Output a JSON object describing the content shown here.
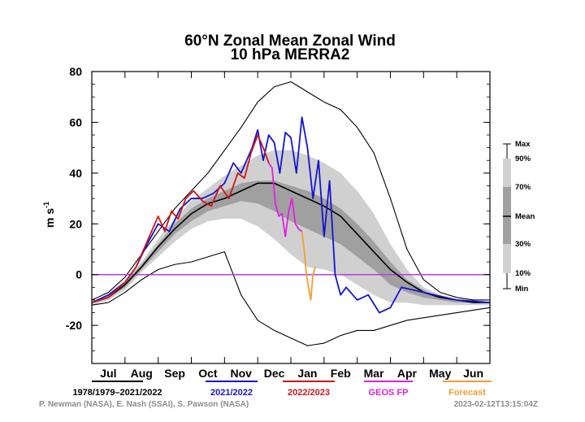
{
  "chart_data": {
    "type": "area",
    "title": "60°N Zonal Mean Zonal Wind",
    "subtitle": "10 hPa   MERRA2",
    "ylabel": "m s-1",
    "ylim": [
      -35,
      80
    ],
    "yticks": [
      80,
      60,
      40,
      20,
      0,
      -20
    ],
    "months": [
      "Jul",
      "Aug",
      "Sep",
      "Oct",
      "Nov",
      "Dec",
      "Jan",
      "Feb",
      "Mar",
      "Apr",
      "May",
      "Jun"
    ],
    "zero_line": 0,
    "x_days": [
      0,
      15,
      30,
      45,
      60,
      75,
      90,
      105,
      120,
      135,
      150,
      165,
      180,
      195,
      210,
      225,
      240,
      255,
      270,
      285,
      300,
      315,
      330,
      345,
      360
    ],
    "climatology": {
      "max": [
        -10,
        -7,
        -1,
        8,
        17,
        26,
        33,
        40,
        49,
        58,
        68,
        74,
        76,
        72,
        68,
        65,
        58,
        48,
        30,
        10,
        -2,
        -7,
        -9,
        -10,
        -10
      ],
      "p90": [
        -11,
        -8,
        -3,
        5,
        14,
        22,
        29,
        34,
        39,
        43,
        47,
        49,
        49,
        47,
        44,
        40,
        33,
        24,
        12,
        2,
        -5,
        -8,
        -10,
        -11,
        -11
      ],
      "p70": [
        -11,
        -8,
        -3,
        4,
        12,
        20,
        26,
        30,
        33,
        36,
        37,
        37,
        35,
        33,
        30,
        26,
        20,
        13,
        5,
        -2,
        -6,
        -9,
        -10,
        -11,
        -11
      ],
      "mean": [
        -11,
        -9,
        -4,
        3,
        11,
        18,
        24,
        28,
        30,
        33,
        36,
        36,
        33,
        30,
        27,
        23,
        16,
        9,
        2,
        -3,
        -7,
        -9,
        -10,
        -11,
        -11
      ],
      "p30": [
        -11,
        -9,
        -5,
        2,
        9,
        16,
        21,
        25,
        27,
        29,
        28,
        25,
        21,
        18,
        15,
        12,
        7,
        2,
        -4,
        -7,
        -9,
        -10,
        -11,
        -11,
        -11
      ],
      "p10": [
        -12,
        -10,
        -6,
        1,
        7,
        13,
        18,
        21,
        22,
        22,
        19,
        14,
        8,
        3,
        2,
        0,
        -4,
        -8,
        -11,
        -11,
        -12,
        -12,
        -12,
        -12,
        -12
      ],
      "min": [
        -12,
        -11,
        -7,
        -2,
        2,
        4,
        5,
        7,
        9,
        -8,
        -18,
        -22,
        -25,
        -28,
        -27,
        -24,
        -22,
        -22,
        -20,
        -18,
        -17,
        -16,
        -15,
        -14,
        -13
      ]
    },
    "series": [
      {
        "name": "2021/2022",
        "color": "#1414d2",
        "x": [
          0,
          15,
          30,
          40,
          50,
          60,
          70,
          80,
          90,
          100,
          110,
          120,
          128,
          135,
          140,
          145,
          150,
          155,
          160,
          165,
          170,
          175,
          180,
          185,
          190,
          195,
          200,
          205,
          210,
          215,
          220,
          225,
          230,
          240,
          250,
          260,
          270,
          280,
          300,
          330,
          360
        ],
        "y": [
          -11,
          -8,
          -3,
          3,
          12,
          20,
          17,
          26,
          30,
          30,
          32,
          36,
          44,
          40,
          45,
          50,
          57,
          45,
          55,
          52,
          40,
          56,
          54,
          40,
          62,
          50,
          30,
          45,
          15,
          37,
          0,
          -8,
          -5,
          -10,
          -8,
          -15,
          -13,
          -5,
          -7,
          -10,
          -11
        ]
      },
      {
        "name": "2022/2023",
        "color": "#d21414",
        "x": [
          0,
          15,
          30,
          40,
          50,
          60,
          66,
          72,
          78,
          85,
          92,
          100,
          108,
          116,
          124,
          132,
          138,
          144,
          150,
          155,
          160
        ],
        "y": [
          -11,
          -9,
          -3,
          3,
          13,
          23,
          17,
          25,
          22,
          30,
          33,
          29,
          27,
          35,
          30,
          40,
          38,
          48,
          55,
          50,
          44
        ]
      },
      {
        "name": "GEOS FP",
        "color": "#e020e0",
        "x": [
          160,
          163,
          166,
          169,
          172,
          175,
          178,
          181,
          184,
          187,
          190
        ],
        "y": [
          44,
          42,
          28,
          23,
          24,
          15,
          25,
          30,
          20,
          18,
          17
        ]
      },
      {
        "name": "Forecast",
        "color": "#f0a030",
        "x": [
          190,
          192,
          194,
          196,
          198,
          200,
          202
        ],
        "y": [
          17,
          10,
          0,
          -5,
          -10,
          0,
          3
        ]
      }
    ],
    "legend": [
      {
        "label": "1978/1979–2021/2022",
        "color": "#000000"
      },
      {
        "label": "2021/2022",
        "color": "#1414d2"
      },
      {
        "label": "2022/2023",
        "color": "#d21414"
      },
      {
        "label": "GEOS FP",
        "color": "#e020e0"
      },
      {
        "label": "Forecast",
        "color": "#f0a030"
      }
    ],
    "key": [
      "Max",
      "90%",
      "70%",
      "Mean",
      "30%",
      "10%",
      "Min"
    ],
    "credit_left": "P. Newman (NASA), E. Nash (SSAI), S. Pawson (NASA)",
    "credit_right": "2023-02-12T13:15:04Z",
    "colors": {
      "light_band": "#d0d0d0",
      "mid_band": "#a0a0a0",
      "dark_band": "#707070",
      "zero_line": "#b040e0"
    }
  }
}
